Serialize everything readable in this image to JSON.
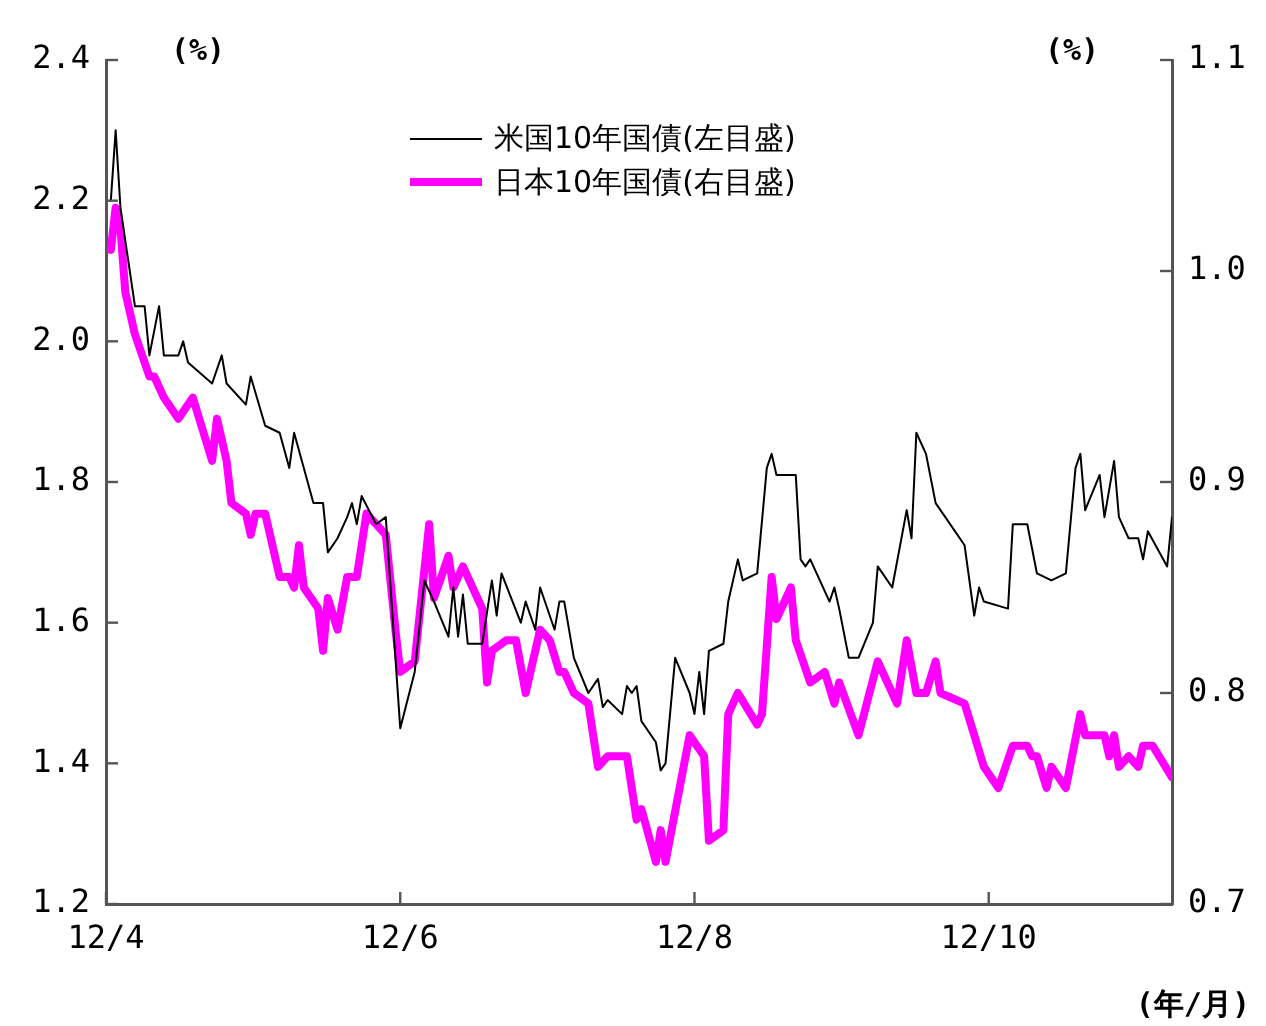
{
  "chart_data": {
    "type": "line",
    "ylabel": "(%)",
    "y2label": "(%)",
    "xlabel": "(年/月)",
    "legend": "top",
    "marker": "none",
    "line_style": "solid",
    "xlim": [
      "--04-01",
      "--11-08"
    ],
    "xticks": [
      {
        "value": "--04-01",
        "label": "12/4"
      },
      {
        "value": "--06-01",
        "label": "12/6"
      },
      {
        "value": "--08-01",
        "label": "12/8"
      },
      {
        "value": "--10-01",
        "label": "12/10"
      }
    ],
    "ylim": [
      1.2,
      2.4
    ],
    "yticks": [
      1.2,
      1.4,
      1.6,
      1.8,
      {
        "value": 2.0,
        "label": "2.0"
      },
      2.2,
      2.4
    ],
    "y2lim": [
      0.7,
      1.1
    ],
    "y2ticks": [
      0.7,
      0.8,
      0.9,
      {
        "value": 1.0,
        "label": "1.0"
      },
      1.1
    ],
    "series": [
      {
        "name": "米国10年国債(左目盛)",
        "color": "#000000",
        "axis": "y",
        "x": [
          "--04-02",
          "--04-03",
          "--04-04",
          "--04-07",
          "--04-09",
          "--04-10",
          "--04-12",
          "--04-13",
          "--04-16",
          "--04-17",
          "--04-18",
          "--04-23",
          "--04-25",
          "--04-26",
          "--04-30",
          "--05-01",
          "--05-04",
          "--05-07",
          "--05-09",
          "--05-10",
          "--05-14",
          "--05-16",
          "--05-17",
          "--05-19",
          "--05-21",
          "--05-22",
          "--05-23",
          "--05-24",
          "--05-27",
          "--05-29",
          "--06-01",
          "--06-04",
          "--06-06",
          "--06-08",
          "--06-11",
          "--06-12",
          "--06-13",
          "--06-14",
          "--06-15",
          "--06-18",
          "--06-20",
          "--06-21",
          "--06-22",
          "--06-26",
          "--06-27",
          "--06-29",
          "--06-30",
          "--07-03",
          "--07-04",
          "--07-05",
          "--07-07",
          "--07-10",
          "--07-12",
          "--07-13",
          "--07-14",
          "--07-17",
          "--07-18",
          "--07-19",
          "--07-20",
          "--07-21",
          "--07-24",
          "--07-25",
          "--07-26",
          "--07-28",
          "--07-31",
          "--08-01",
          "--08-02",
          "--08-03",
          "--08-04",
          "--08-07",
          "--08-08",
          "--08-10",
          "--08-11",
          "--08-14",
          "--08-16",
          "--08-17",
          "--08-18",
          "--08-22",
          "--08-23",
          "--08-24",
          "--08-25",
          "--08-29",
          "--08-30",
          "--08-31",
          "--09-02",
          "--09-04",
          "--09-07",
          "--09-08",
          "--09-11",
          "--09-14",
          "--09-15",
          "--09-16",
          "--09-18",
          "--09-20",
          "--09-22",
          "--09-26",
          "--09-28",
          "--09-29",
          "--09-30",
          "--10-05",
          "--10-06",
          "--10-09",
          "--10-11",
          "--10-14",
          "--10-17",
          "--10-19",
          "--10-20",
          "--10-21",
          "--10-24",
          "--10-25",
          "--10-27",
          "--10-28",
          "--10-30",
          "--11-01",
          "--11-02",
          "--11-03",
          "--11-07",
          "--11-08"
        ],
        "values": [
          2.2,
          2.3,
          2.19,
          2.05,
          2.05,
          1.98,
          2.05,
          1.98,
          1.98,
          2.0,
          1.97,
          1.94,
          1.98,
          1.94,
          1.91,
          1.95,
          1.88,
          1.87,
          1.82,
          1.87,
          1.77,
          1.77,
          1.7,
          1.72,
          1.75,
          1.77,
          1.74,
          1.78,
          1.74,
          1.75,
          1.45,
          1.53,
          1.66,
          1.63,
          1.58,
          1.65,
          1.58,
          1.64,
          1.57,
          1.57,
          1.66,
          1.61,
          1.67,
          1.6,
          1.63,
          1.59,
          1.65,
          1.59,
          1.63,
          1.63,
          1.55,
          1.5,
          1.52,
          1.48,
          1.49,
          1.47,
          1.51,
          1.5,
          1.51,
          1.46,
          1.43,
          1.39,
          1.4,
          1.55,
          1.5,
          1.47,
          1.53,
          1.47,
          1.56,
          1.57,
          1.63,
          1.69,
          1.66,
          1.67,
          1.82,
          1.84,
          1.81,
          1.81,
          1.69,
          1.68,
          1.69,
          1.63,
          1.65,
          1.62,
          1.55,
          1.55,
          1.6,
          1.68,
          1.65,
          1.76,
          1.72,
          1.87,
          1.84,
          1.77,
          1.75,
          1.71,
          1.61,
          1.65,
          1.63,
          1.62,
          1.74,
          1.74,
          1.67,
          1.66,
          1.67,
          1.82,
          1.84,
          1.76,
          1.81,
          1.75,
          1.83,
          1.75,
          1.72,
          1.72,
          1.69,
          1.73,
          1.68,
          1.75
        ]
      },
      {
        "name": "日本10年国債(右目盛)",
        "color": "#ff00ff",
        "axis": "y2",
        "x": [
          "--04-02",
          "--04-03",
          "--04-04",
          "--04-05",
          "--04-07",
          "--04-10",
          "--04-11",
          "--04-13",
          "--04-16",
          "--04-19",
          "--04-23",
          "--04-24",
          "--04-26",
          "--04-27",
          "--04-30",
          "--05-01",
          "--05-02",
          "--05-04",
          "--05-07",
          "--05-09",
          "--05-10",
          "--05-11",
          "--05-12",
          "--05-15",
          "--05-16",
          "--05-17",
          "--05-19",
          "--05-21",
          "--05-23",
          "--05-25",
          "--05-29",
          "--05-31",
          "--06-01",
          "--06-04",
          "--06-07",
          "--06-08",
          "--06-11",
          "--06-12",
          "--06-14",
          "--06-18",
          "--06-19",
          "--06-20",
          "--06-23",
          "--06-25",
          "--06-27",
          "--06-30",
          "--07-02",
          "--07-04",
          "--07-05",
          "--07-07",
          "--07-10",
          "--07-12",
          "--07-14",
          "--07-18",
          "--07-20",
          "--07-21",
          "--07-24",
          "--07-25",
          "--07-26",
          "--07-31",
          "--08-03",
          "--08-04",
          "--08-07",
          "--08-08",
          "--08-10",
          "--08-14",
          "--08-15",
          "--08-17",
          "--08-18",
          "--08-21",
          "--08-22",
          "--08-25",
          "--08-28",
          "--08-30",
          "--08-31",
          "--09-04",
          "--09-08",
          "--09-12",
          "--09-14",
          "--09-16",
          "--09-18",
          "--09-20",
          "--09-21",
          "--09-26",
          "--09-28",
          "--09-30",
          "--10-03",
          "--10-06",
          "--10-09",
          "--10-10",
          "--10-11",
          "--10-13",
          "--10-14",
          "--10-17",
          "--10-20",
          "--10-21",
          "--10-25",
          "--10-26",
          "--10-27",
          "--10-28",
          "--10-30",
          "--11-01",
          "--11-02",
          "--11-04",
          "--11-08"
        ],
        "values": [
          1.01,
          1.03,
          1.02,
          0.99,
          0.97,
          0.95,
          0.95,
          0.94,
          0.93,
          0.94,
          0.91,
          0.93,
          0.91,
          0.89,
          0.885,
          0.875,
          0.885,
          0.885,
          0.855,
          0.855,
          0.85,
          0.87,
          0.85,
          0.84,
          0.82,
          0.845,
          0.83,
          0.855,
          0.855,
          0.885,
          0.875,
          0.83,
          0.81,
          0.815,
          0.88,
          0.845,
          0.865,
          0.85,
          0.86,
          0.84,
          0.805,
          0.82,
          0.825,
          0.825,
          0.8,
          0.83,
          0.825,
          0.81,
          0.81,
          0.8,
          0.795,
          0.765,
          0.77,
          0.77,
          0.74,
          0.745,
          0.72,
          0.735,
          0.72,
          0.78,
          0.77,
          0.73,
          0.735,
          0.79,
          0.8,
          0.785,
          0.79,
          0.855,
          0.835,
          0.85,
          0.825,
          0.805,
          0.81,
          0.795,
          0.805,
          0.78,
          0.815,
          0.795,
          0.825,
          0.8,
          0.8,
          0.815,
          0.8,
          0.795,
          0.78,
          0.765,
          0.755,
          0.775,
          0.775,
          0.77,
          0.77,
          0.755,
          0.765,
          0.755,
          0.79,
          0.78,
          0.78,
          0.77,
          0.78,
          0.765,
          0.77,
          0.765,
          0.775,
          0.775,
          0.76
        ]
      }
    ]
  }
}
